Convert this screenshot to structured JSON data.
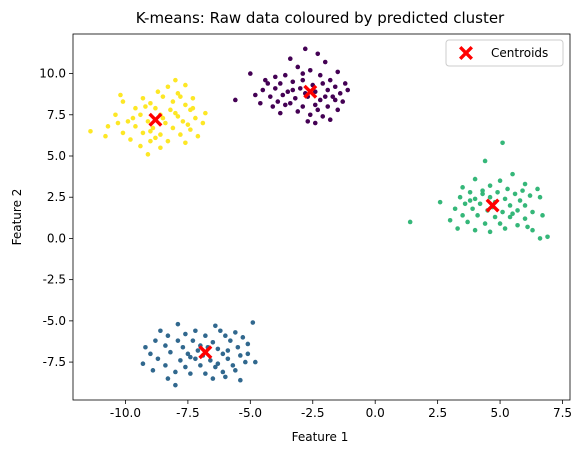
{
  "chart_data": {
    "type": "scatter",
    "title": "K-means: Raw data coloured by predicted cluster",
    "xlabel": "Feature 1",
    "ylabel": "Feature 2",
    "xlim": [
      -12.1,
      7.8
    ],
    "ylim": [
      -9.8,
      12.4
    ],
    "xticks": [
      "-10.0",
      "-7.5",
      "-5.0",
      "-2.5",
      "0.0",
      "2.5",
      "5.0",
      "7.5"
    ],
    "xtick_values": [
      -10,
      -7.5,
      -5,
      -2.5,
      0,
      2.5,
      5,
      7.5
    ],
    "yticks": [
      "-7.5",
      "-5.0",
      "-2.5",
      "0.0",
      "2.5",
      "5.0",
      "7.5",
      "10.0"
    ],
    "ytick_values": [
      -7.5,
      -5,
      -2.5,
      0,
      2.5,
      5,
      7.5,
      10
    ],
    "grid": false,
    "legend": {
      "placement": "upper-right",
      "entries": [
        "Centroids"
      ]
    },
    "colors": {
      "cluster_0": "#440154",
      "cluster_1": "#31688e",
      "cluster_2": "#35b779",
      "cluster_3": "#fde725",
      "centroid": "#ff0000"
    },
    "clusters": [
      {
        "color_key": "cluster_0",
        "points": [
          [
            -2.8,
            11.5
          ],
          [
            -2.3,
            11.2
          ],
          [
            -3.4,
            10.9
          ],
          [
            -2.0,
            10.7
          ],
          [
            -1.5,
            10.1
          ],
          [
            -5.0,
            10.0
          ],
          [
            -3.1,
            10.4
          ],
          [
            -2.6,
            10.2
          ],
          [
            -4.0,
            9.8
          ],
          [
            -3.6,
            9.9
          ],
          [
            -2.2,
            9.9
          ],
          [
            -1.8,
            9.6
          ],
          [
            -1.2,
            9.4
          ],
          [
            -4.3,
            9.4
          ],
          [
            -3.8,
            9.4
          ],
          [
            -3.3,
            9.5
          ],
          [
            -2.9,
            9.6
          ],
          [
            -2.5,
            9.3
          ],
          [
            -2.1,
            9.4
          ],
          [
            -1.6,
            9.2
          ],
          [
            -1.1,
            9.0
          ],
          [
            -4.5,
            9.0
          ],
          [
            -4.0,
            9.1
          ],
          [
            -3.5,
            8.9
          ],
          [
            -3.0,
            9.1
          ],
          [
            -2.4,
            8.9
          ],
          [
            -1.9,
            9.0
          ],
          [
            -1.4,
            8.8
          ],
          [
            -4.2,
            8.6
          ],
          [
            -3.7,
            8.7
          ],
          [
            -3.2,
            8.5
          ],
          [
            -2.7,
            8.6
          ],
          [
            -2.2,
            8.4
          ],
          [
            -1.7,
            8.6
          ],
          [
            -1.3,
            8.3
          ],
          [
            -4.6,
            8.2
          ],
          [
            -4.1,
            8.0
          ],
          [
            -3.4,
            8.2
          ],
          [
            -2.9,
            8.0
          ],
          [
            -2.4,
            8.1
          ],
          [
            -1.9,
            8.0
          ],
          [
            -1.5,
            7.8
          ],
          [
            -3.8,
            7.6
          ],
          [
            -3.1,
            7.7
          ],
          [
            -2.6,
            7.5
          ],
          [
            -2.1,
            7.4
          ],
          [
            -2.4,
            7.0
          ],
          [
            -2.7,
            7.1
          ],
          [
            -1.8,
            7.2
          ],
          [
            -5.6,
            8.4
          ],
          [
            -4.8,
            8.7
          ],
          [
            -3.9,
            8.3
          ],
          [
            -2.8,
            8.8
          ],
          [
            -3.3,
            9.0
          ],
          [
            -2.0,
            8.6
          ],
          [
            -1.6,
            8.4
          ],
          [
            -3.6,
            8.1
          ],
          [
            -2.3,
            7.8
          ],
          [
            -2.9,
            10.0
          ],
          [
            -4.4,
            9.6
          ]
        ]
      },
      {
        "color_key": "cluster_1",
        "points": [
          [
            -4.9,
            -5.1
          ],
          [
            -7.9,
            -5.2
          ],
          [
            -6.4,
            -5.3
          ],
          [
            -8.6,
            -5.6
          ],
          [
            -7.2,
            -5.6
          ],
          [
            -6.2,
            -5.6
          ],
          [
            -5.6,
            -5.7
          ],
          [
            -8.3,
            -5.9
          ],
          [
            -7.6,
            -5.8
          ],
          [
            -6.8,
            -5.9
          ],
          [
            -6.0,
            -5.9
          ],
          [
            -5.3,
            -6.0
          ],
          [
            -8.8,
            -6.2
          ],
          [
            -7.9,
            -6.2
          ],
          [
            -7.3,
            -6.2
          ],
          [
            -6.5,
            -6.3
          ],
          [
            -5.8,
            -6.2
          ],
          [
            -5.1,
            -6.4
          ],
          [
            -9.2,
            -6.6
          ],
          [
            -8.4,
            -6.5
          ],
          [
            -7.7,
            -6.6
          ],
          [
            -7.0,
            -6.5
          ],
          [
            -6.3,
            -6.7
          ],
          [
            -5.5,
            -6.6
          ],
          [
            -9.0,
            -7.0
          ],
          [
            -8.2,
            -6.9
          ],
          [
            -7.5,
            -7.0
          ],
          [
            -6.9,
            -7.1
          ],
          [
            -6.1,
            -7.0
          ],
          [
            -5.4,
            -7.1
          ],
          [
            -8.7,
            -7.3
          ],
          [
            -7.8,
            -7.4
          ],
          [
            -7.2,
            -7.3
          ],
          [
            -6.6,
            -7.4
          ],
          [
            -5.9,
            -7.3
          ],
          [
            -5.2,
            -7.5
          ],
          [
            -8.4,
            -7.7
          ],
          [
            -7.6,
            -7.8
          ],
          [
            -7.0,
            -7.7
          ],
          [
            -6.4,
            -7.8
          ],
          [
            -5.7,
            -7.7
          ],
          [
            -4.8,
            -7.5
          ],
          [
            -8.0,
            -8.1
          ],
          [
            -7.4,
            -8.2
          ],
          [
            -6.8,
            -8.2
          ],
          [
            -6.1,
            -8.1
          ],
          [
            -5.6,
            -8.0
          ],
          [
            -8.3,
            -8.5
          ],
          [
            -6.5,
            -8.5
          ],
          [
            -5.4,
            -8.6
          ],
          [
            -8.0,
            -8.9
          ],
          [
            -9.3,
            -7.6
          ],
          [
            -7.1,
            -6.8
          ],
          [
            -6.7,
            -6.6
          ],
          [
            -5.9,
            -6.8
          ],
          [
            -7.4,
            -7.2
          ],
          [
            -6.3,
            -7.6
          ],
          [
            -5.1,
            -7.0
          ],
          [
            -8.9,
            -8.0
          ],
          [
            -6.0,
            -8.4
          ]
        ]
      },
      {
        "color_key": "cluster_2",
        "points": [
          [
            5.1,
            5.8
          ],
          [
            4.4,
            4.7
          ],
          [
            5.5,
            3.9
          ],
          [
            4.0,
            3.6
          ],
          [
            5.0,
            3.5
          ],
          [
            6.0,
            3.3
          ],
          [
            3.5,
            3.1
          ],
          [
            4.6,
            3.2
          ],
          [
            5.3,
            3.0
          ],
          [
            6.5,
            3.0
          ],
          [
            3.8,
            2.8
          ],
          [
            4.3,
            2.7
          ],
          [
            4.9,
            2.8
          ],
          [
            5.6,
            2.7
          ],
          [
            6.2,
            2.6
          ],
          [
            3.4,
            2.5
          ],
          [
            4.0,
            2.4
          ],
          [
            4.6,
            2.5
          ],
          [
            5.2,
            2.4
          ],
          [
            5.8,
            2.3
          ],
          [
            6.6,
            2.5
          ],
          [
            2.6,
            2.2
          ],
          [
            3.6,
            2.1
          ],
          [
            4.2,
            2.1
          ],
          [
            4.8,
            2.2
          ],
          [
            5.4,
            2.0
          ],
          [
            6.0,
            2.0
          ],
          [
            3.2,
            1.8
          ],
          [
            3.9,
            1.8
          ],
          [
            4.5,
            1.7
          ],
          [
            5.1,
            1.6
          ],
          [
            5.7,
            1.7
          ],
          [
            6.3,
            1.6
          ],
          [
            3.5,
            1.4
          ],
          [
            4.1,
            1.4
          ],
          [
            4.8,
            1.3
          ],
          [
            5.4,
            1.3
          ],
          [
            6.0,
            1.2
          ],
          [
            3.0,
            1.1
          ],
          [
            3.7,
            1.0
          ],
          [
            4.4,
            0.9
          ],
          [
            5.0,
            0.9
          ],
          [
            5.7,
            0.8
          ],
          [
            4.0,
            0.5
          ],
          [
            4.6,
            0.4
          ],
          [
            5.2,
            0.6
          ],
          [
            6.1,
            0.7
          ],
          [
            6.3,
            0.5
          ],
          [
            6.6,
            0.0
          ],
          [
            6.9,
            0.1
          ],
          [
            1.4,
            1.0
          ],
          [
            3.3,
            0.6
          ],
          [
            4.3,
            2.9
          ],
          [
            5.9,
            2.9
          ],
          [
            4.7,
            1.9
          ],
          [
            5.5,
            1.5
          ],
          [
            3.8,
            2.3
          ],
          [
            6.7,
            1.4
          ]
        ]
      },
      {
        "color_key": "cluster_3",
        "points": [
          [
            -8.0,
            9.6
          ],
          [
            -7.6,
            9.3
          ],
          [
            -8.3,
            9.2
          ],
          [
            -10.2,
            8.7
          ],
          [
            -8.7,
            8.9
          ],
          [
            -7.9,
            8.8
          ],
          [
            -9.3,
            8.5
          ],
          [
            -8.5,
            8.6
          ],
          [
            -7.3,
            8.5
          ],
          [
            -10.1,
            8.3
          ],
          [
            -9.0,
            8.2
          ],
          [
            -8.1,
            8.3
          ],
          [
            -7.6,
            8.1
          ],
          [
            -9.6,
            7.9
          ],
          [
            -8.8,
            7.9
          ],
          [
            -8.2,
            7.8
          ],
          [
            -7.4,
            7.8
          ],
          [
            -6.8,
            7.6
          ],
          [
            -10.4,
            7.5
          ],
          [
            -9.4,
            7.5
          ],
          [
            -8.6,
            7.5
          ],
          [
            -7.9,
            7.4
          ],
          [
            -7.2,
            7.3
          ],
          [
            -9.9,
            7.1
          ],
          [
            -9.1,
            7.1
          ],
          [
            -8.4,
            7.0
          ],
          [
            -7.7,
            7.1
          ],
          [
            -6.9,
            7.0
          ],
          [
            -10.7,
            6.8
          ],
          [
            -9.6,
            6.8
          ],
          [
            -8.9,
            6.7
          ],
          [
            -8.1,
            6.7
          ],
          [
            -7.4,
            6.6
          ],
          [
            -10.1,
            6.4
          ],
          [
            -9.3,
            6.4
          ],
          [
            -8.6,
            6.3
          ],
          [
            -7.8,
            6.3
          ],
          [
            -7.1,
            6.2
          ],
          [
            -9.8,
            6.0
          ],
          [
            -9.0,
            5.9
          ],
          [
            -8.3,
            5.9
          ],
          [
            -7.6,
            5.8
          ],
          [
            -9.4,
            5.6
          ],
          [
            -8.6,
            5.5
          ],
          [
            -9.1,
            5.1
          ],
          [
            -11.4,
            6.5
          ],
          [
            -10.8,
            6.2
          ],
          [
            -9.7,
            7.3
          ],
          [
            -8.0,
            7.6
          ],
          [
            -7.5,
            6.9
          ],
          [
            -8.8,
            6.1
          ],
          [
            -9.2,
            8.0
          ],
          [
            -7.8,
            8.6
          ],
          [
            -10.3,
            7.0
          ],
          [
            -8.5,
            7.3
          ],
          [
            -9.0,
            6.5
          ],
          [
            -7.3,
            7.9
          ]
        ]
      }
    ],
    "centroids": [
      [
        -2.6,
        8.9
      ],
      [
        -6.8,
        -6.9
      ],
      [
        4.7,
        2.0
      ],
      [
        -8.8,
        7.2
      ]
    ]
  }
}
